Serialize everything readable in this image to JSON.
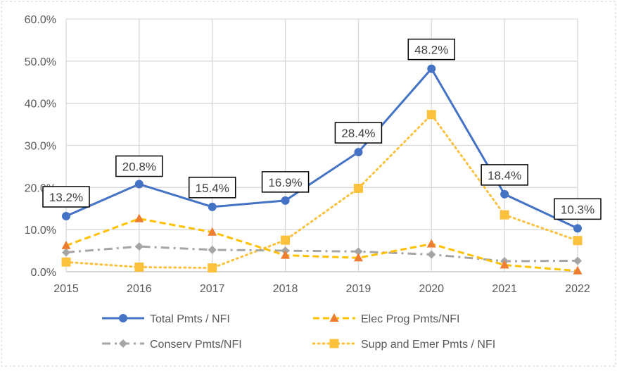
{
  "chart_data": {
    "type": "line",
    "categories": [
      "2015",
      "2016",
      "2017",
      "2018",
      "2019",
      "2020",
      "2021",
      "2022"
    ],
    "ylim": [
      0,
      60
    ],
    "yticks": [
      "0.0%",
      "10.0%",
      "20.0%",
      "30.0%",
      "40.0%",
      "50.0%",
      "60.0%"
    ],
    "grid": true,
    "legend_position": "bottom",
    "series": [
      {
        "name": "Total Pmts / NFI",
        "values": [
          13.2,
          20.8,
          15.4,
          16.9,
          28.4,
          48.2,
          18.4,
          10.3
        ],
        "labels": [
          "13.2%",
          "20.8%",
          "15.4%",
          "16.9%",
          "28.4%",
          "48.2%",
          "18.4%",
          "10.3%"
        ],
        "color": "#4472C4",
        "marker": "circle",
        "dash": "solid"
      },
      {
        "name": "Elec Prog Pmts/NFI",
        "values": [
          6.2,
          12.6,
          9.4,
          3.9,
          3.3,
          6.6,
          1.6,
          0.2
        ],
        "color": "#FFC000",
        "marker_color": "#ED7D31",
        "marker": "triangle",
        "dash": "dashed"
      },
      {
        "name": "Conserv Pmts/NFI",
        "values": [
          4.6,
          6.0,
          5.2,
          5.0,
          4.8,
          4.1,
          2.5,
          2.6
        ],
        "color": "#A5A5A5",
        "marker": "diamond",
        "dash": "dash-dot"
      },
      {
        "name": "Supp and Emer Pmts / NFI",
        "values": [
          2.3,
          1.1,
          0.9,
          7.5,
          19.8,
          37.3,
          13.5,
          7.4
        ],
        "color": "#FBC13C",
        "marker": "square",
        "dash": "dotted"
      }
    ]
  }
}
